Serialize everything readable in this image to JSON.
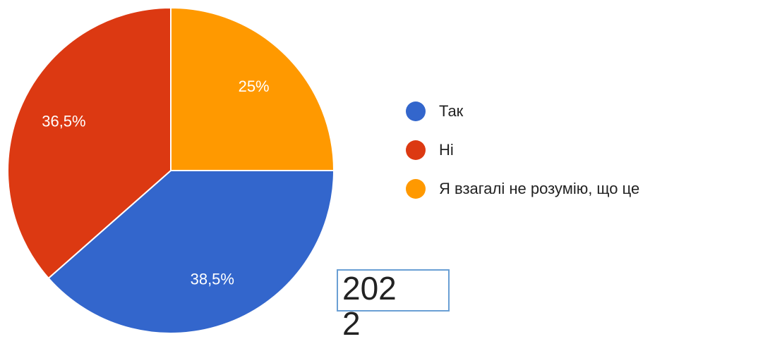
{
  "chart_data": {
    "type": "pie",
    "categories": [
      "Так",
      "Ні",
      "Я взагалі не розумію, що це"
    ],
    "values": [
      38.5,
      36.5,
      25
    ],
    "value_labels": [
      "38,5%",
      "36,5%",
      "25%"
    ],
    "colors": [
      "#3366cc",
      "#dc3912",
      "#ff9900"
    ],
    "legend": "right",
    "annotation": "2022"
  }
}
